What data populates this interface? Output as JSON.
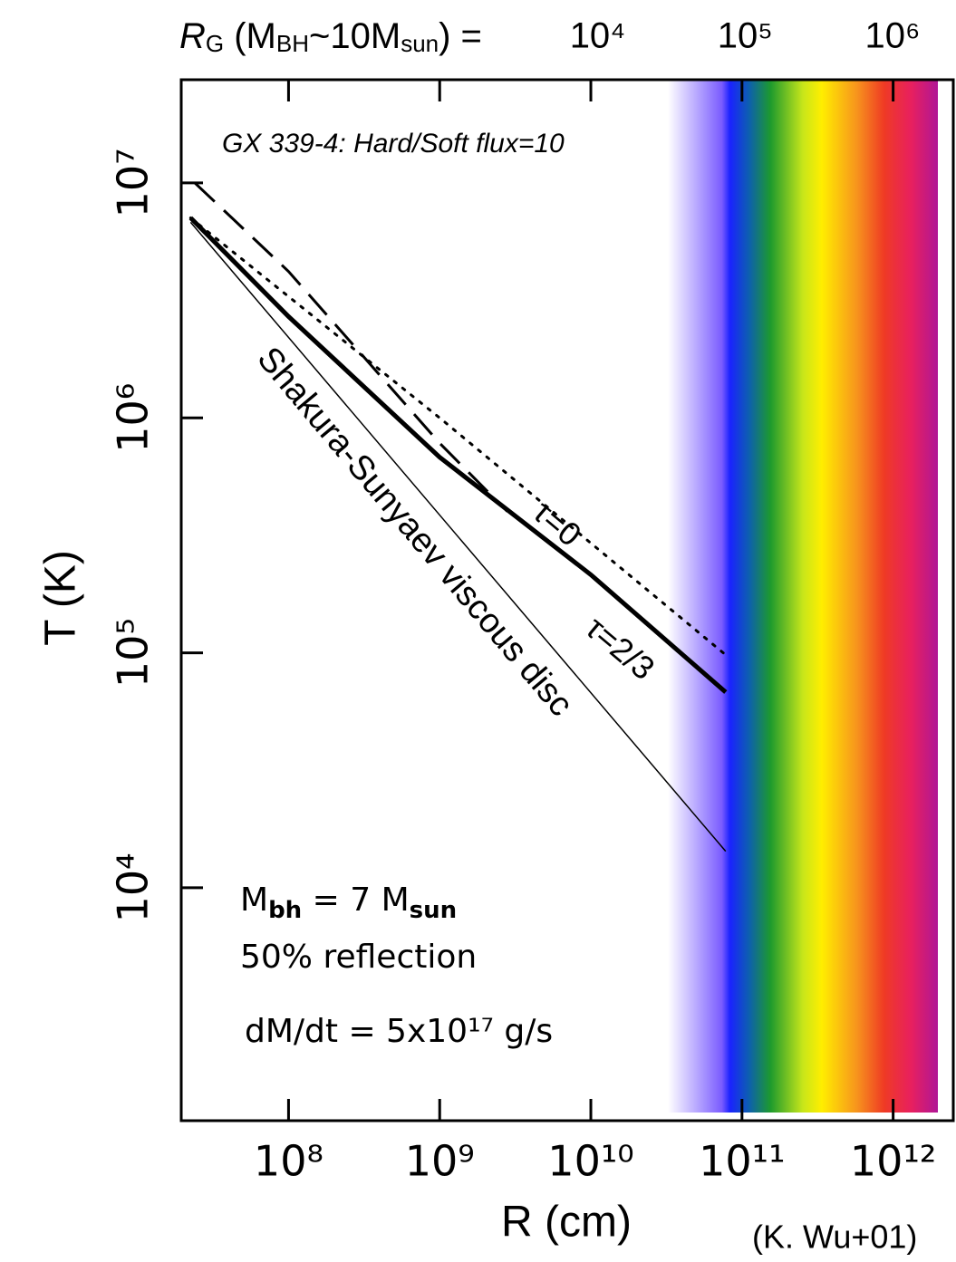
{
  "chart_data": {
    "type": "line",
    "x_label": "R (cm)",
    "y_label": "T (K)",
    "xscale": "log",
    "yscale": "log",
    "xlim": [
      19500000.0,
      2500000000000.0
    ],
    "ylim": [
      1020,
      27500000
    ],
    "xticks": [
      {
        "value": 100000000.0,
        "label": "10⁸"
      },
      {
        "value": 1000000000.0,
        "label": "10⁹"
      },
      {
        "value": 10000000000.0,
        "label": "10¹⁰"
      },
      {
        "value": 100000000000.0,
        "label": "10¹¹"
      },
      {
        "value": 1000000000000.0,
        "label": "10¹²"
      }
    ],
    "yticks": [
      {
        "value": 10000.0,
        "label": "10⁴"
      },
      {
        "value": 100000.0,
        "label": "10⁵"
      },
      {
        "value": 1000000.0,
        "label": "10⁶"
      },
      {
        "value": 10000000.0,
        "label": "10⁷"
      }
    ],
    "x2_label_parts": [
      "R",
      "G",
      " (M",
      "BH",
      "~10M",
      "sun",
      ")  ="
    ],
    "x2lim": [
      15,
      2580000
    ],
    "x2ticks": [
      {
        "value": 10000.0,
        "label": "10⁴"
      },
      {
        "value": 100000.0,
        "label": "10⁵"
      },
      {
        "value": 1000000.0,
        "label": "10⁶"
      }
    ],
    "series": [
      {
        "color": "#000000",
        "style": "solid",
        "width": 5,
        "x": [
          22500000.0,
          100000000.0,
          1000000000.0,
          10000000000.0,
          78000000000.0
        ],
        "values": [
          7100000,
          2700000,
          680000,
          215000,
          68000
        ]
      },
      {
        "color": "#000000",
        "style": "dotted",
        "width": 3,
        "x": [
          22500000.0,
          1000000000.0,
          10000000000.0,
          78000000000.0
        ],
        "values": [
          7100000,
          1000000,
          293000,
          98000
        ]
      },
      {
        "color": "#000000",
        "style": "dashed",
        "width": 3,
        "x": [
          24000000.0,
          100000000.0,
          1000000000.0,
          2800000000.0
        ],
        "values": [
          10000000,
          4200000,
          780000,
          400000
        ]
      },
      {
        "color": "#000000",
        "style": "solid",
        "width": 1.5,
        "x": [
          22500000.0,
          78000000000.0
        ],
        "values": [
          6800000,
          14300
        ]
      }
    ],
    "annotations": [
      {
        "text": "GX 339-4:  Hard/Soft flux=10"
      },
      {
        "text": "Shakura-Sunyaev viscous disc"
      },
      {
        "text": "τ=0"
      },
      {
        "text": "τ=2/3"
      },
      {
        "parts": [
          "M",
          "bh",
          " = 7 M",
          "sun"
        ]
      },
      {
        "text": "50% reflection"
      },
      {
        "text": "dM/dt  = 5x10¹⁷ g/s"
      },
      {
        "text": "(K. Wu+01)"
      }
    ]
  }
}
